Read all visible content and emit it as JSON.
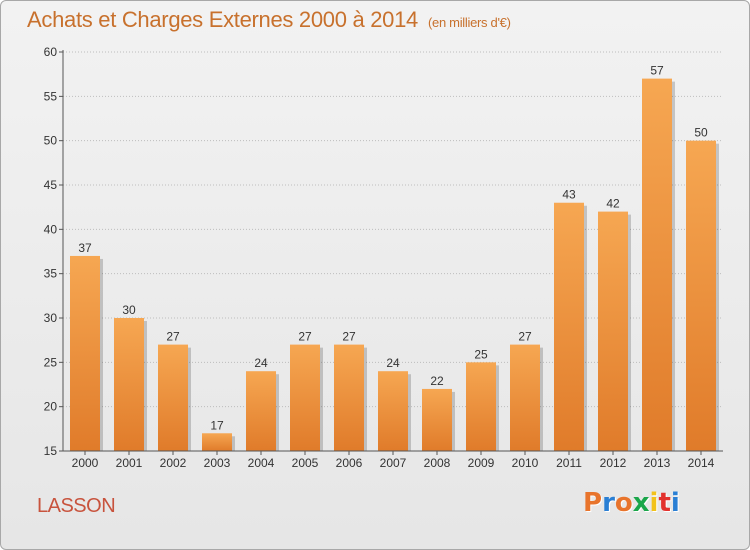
{
  "header": {
    "title": "Achats et Charges Externes 2000 à 2014",
    "subtitle": "(en milliers d'€)"
  },
  "footer": {
    "place": "LASSON",
    "logo_text": "Proxiti",
    "logo_colors": [
      "#e8742c",
      "#2a7fd4",
      "#e8742c",
      "#1aa64a",
      "#f2c21a",
      "#e2312d",
      "#2a7fd4"
    ]
  },
  "colors": {
    "bar_light": "#f6a752",
    "bar_dark": "#e07b2a",
    "title": "#c8712d",
    "place": "#c8533d",
    "grid": "#bdbdbd"
  },
  "chart_data": {
    "type": "bar",
    "categories": [
      "2000",
      "2001",
      "2002",
      "2003",
      "2004",
      "2005",
      "2006",
      "2007",
      "2008",
      "2009",
      "2010",
      "2011",
      "2012",
      "2013",
      "2014"
    ],
    "values": [
      37,
      30,
      27,
      17,
      24,
      27,
      27,
      24,
      22,
      25,
      27,
      43,
      42,
      57,
      50
    ],
    "title": "Achats et Charges Externes 2000 à 2014",
    "subtitle": "(en milliers d'€)",
    "xlabel": "",
    "ylabel": "",
    "ylim": [
      15,
      60
    ],
    "yticks": [
      15,
      20,
      25,
      30,
      35,
      40,
      45,
      50,
      55,
      60
    ],
    "grid": true,
    "data_labels": true
  }
}
